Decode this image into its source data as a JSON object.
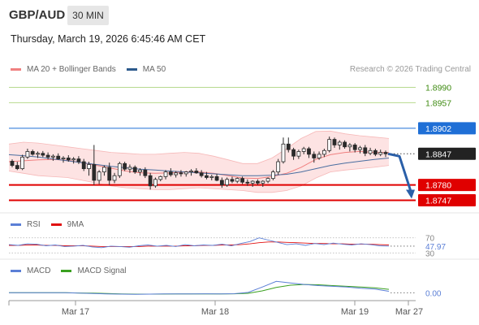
{
  "header": {
    "pair": "GBP/AUD",
    "timeframe": "30 MIN",
    "datetime": "Thursday, March 19, 2026 6:45:46 AM CET"
  },
  "legend": {
    "items": [
      {
        "label": "MA 20 + Bollinger Bands",
        "color": "#f08080"
      },
      {
        "label": "MA 50",
        "color": "#2c5a8c"
      }
    ],
    "copyright": "Research © 2026 Trading Central"
  },
  "rsi_legend": [
    {
      "label": "RSI",
      "color": "#5b7fd6"
    },
    {
      "label": "9MA",
      "color": "#e01010"
    }
  ],
  "macd_legend": [
    {
      "label": "MACD",
      "color": "#5b7fd6"
    },
    {
      "label": "MACD Signal",
      "color": "#3aa020"
    }
  ],
  "chart_data": {
    "type": "candlestick",
    "price_range": [
      1.872,
      1.901
    ],
    "levels": [
      {
        "label": "1.8990",
        "value": 1.899,
        "kind": "target",
        "color": "#b7d98e"
      },
      {
        "label": "1.8957",
        "value": 1.8957,
        "kind": "target",
        "color": "#b7d98e"
      },
      {
        "label": "1.8902",
        "value": 1.8902,
        "kind": "pivot",
        "color": "#1f6fd6"
      },
      {
        "label": "1.8847",
        "value": 1.8847,
        "kind": "last",
        "color": "#222222"
      },
      {
        "label": "1.8780",
        "value": 1.878,
        "kind": "support",
        "color": "#e00000"
      },
      {
        "label": "1.8747",
        "value": 1.8747,
        "kind": "support",
        "color": "#e00000"
      }
    ],
    "x_ticks": [
      "Mar 17",
      "Mar 18",
      "Mar 19",
      "Mar 27"
    ],
    "candles": [
      [
        1.8831,
        1.8835,
        1.8818,
        1.8822
      ],
      [
        1.8822,
        1.883,
        1.8812,
        1.8815
      ],
      [
        1.8815,
        1.8845,
        1.8812,
        1.884
      ],
      [
        1.884,
        1.8858,
        1.8836,
        1.8852
      ],
      [
        1.8852,
        1.8856,
        1.8843,
        1.8846
      ],
      [
        1.8846,
        1.8852,
        1.8838,
        1.8848
      ],
      [
        1.8848,
        1.8853,
        1.884,
        1.8844
      ],
      [
        1.8844,
        1.885,
        1.8835,
        1.884
      ],
      [
        1.884,
        1.8846,
        1.8832,
        1.8842
      ],
      [
        1.8842,
        1.8848,
        1.8834,
        1.8836
      ],
      [
        1.8836,
        1.8842,
        1.8828,
        1.8838
      ],
      [
        1.8838,
        1.8844,
        1.883,
        1.8834
      ],
      [
        1.8834,
        1.884,
        1.8826,
        1.8836
      ],
      [
        1.8836,
        1.8842,
        1.8825,
        1.883
      ],
      [
        1.883,
        1.8836,
        1.881,
        1.8815
      ],
      [
        1.8815,
        1.883,
        1.88,
        1.8824
      ],
      [
        1.8824,
        1.8866,
        1.878,
        1.879
      ],
      [
        1.879,
        1.8812,
        1.8782,
        1.8808
      ],
      [
        1.8808,
        1.8822,
        1.88,
        1.8818
      ],
      [
        1.8818,
        1.8828,
        1.878,
        1.879
      ],
      [
        1.879,
        1.8806,
        1.8784,
        1.88
      ],
      [
        1.88,
        1.883,
        1.8795,
        1.8826
      ],
      [
        1.8826,
        1.883,
        1.881,
        1.8814
      ],
      [
        1.8814,
        1.8824,
        1.8806,
        1.8818
      ],
      [
        1.8818,
        1.8822,
        1.8804,
        1.8808
      ],
      [
        1.8808,
        1.8816,
        1.88,
        1.8812
      ],
      [
        1.8812,
        1.8818,
        1.8795,
        1.88
      ],
      [
        1.88,
        1.8806,
        1.877,
        1.8778
      ],
      [
        1.8778,
        1.8796,
        1.8774,
        1.8792
      ],
      [
        1.8792,
        1.88,
        1.8788,
        1.8798
      ],
      [
        1.8798,
        1.8812,
        1.8792,
        1.8808
      ],
      [
        1.8808,
        1.8816,
        1.8798,
        1.8802
      ],
      [
        1.8802,
        1.881,
        1.8796,
        1.8806
      ],
      [
        1.8806,
        1.8812,
        1.8798,
        1.8804
      ],
      [
        1.8804,
        1.881,
        1.8798,
        1.8808
      ],
      [
        1.8808,
        1.8814,
        1.88,
        1.881
      ],
      [
        1.881,
        1.8816,
        1.8804,
        1.8806
      ],
      [
        1.8806,
        1.8812,
        1.8796,
        1.88
      ],
      [
        1.88,
        1.8808,
        1.8792,
        1.8796
      ],
      [
        1.8796,
        1.8802,
        1.879,
        1.8798
      ],
      [
        1.8798,
        1.8804,
        1.8788,
        1.879
      ],
      [
        1.879,
        1.8796,
        1.8774,
        1.878
      ],
      [
        1.878,
        1.8796,
        1.8776,
        1.8792
      ],
      [
        1.8792,
        1.8798,
        1.8784,
        1.8788
      ],
      [
        1.8788,
        1.8796,
        1.8784,
        1.8794
      ],
      [
        1.8794,
        1.8798,
        1.8782,
        1.8786
      ],
      [
        1.8786,
        1.8792,
        1.8778,
        1.8784
      ],
      [
        1.8784,
        1.879,
        1.8776,
        1.8788
      ],
      [
        1.8788,
        1.8792,
        1.878,
        1.8784
      ],
      [
        1.8784,
        1.879,
        1.8776,
        1.8788
      ],
      [
        1.8788,
        1.8796,
        1.8784,
        1.8794
      ],
      [
        1.8794,
        1.8812,
        1.879,
        1.8808
      ],
      [
        1.8808,
        1.8836,
        1.8802,
        1.883
      ],
      [
        1.883,
        1.8882,
        1.8826,
        1.8868
      ],
      [
        1.8868,
        1.8882,
        1.885,
        1.8856
      ],
      [
        1.8856,
        1.886,
        1.8834,
        1.8842
      ],
      [
        1.8842,
        1.8856,
        1.8836,
        1.8852
      ],
      [
        1.8852,
        1.8862,
        1.8846,
        1.8858
      ],
      [
        1.8858,
        1.8862,
        1.8838,
        1.8846
      ],
      [
        1.8846,
        1.8852,
        1.8828,
        1.8838
      ],
      [
        1.8838,
        1.8852,
        1.8834,
        1.8846
      ],
      [
        1.8846,
        1.8858,
        1.884,
        1.8854
      ],
      [
        1.8854,
        1.8884,
        1.885,
        1.8878
      ],
      [
        1.8878,
        1.8882,
        1.886,
        1.8866
      ],
      [
        1.8866,
        1.8876,
        1.8856,
        1.8872
      ],
      [
        1.8872,
        1.8876,
        1.8858,
        1.8862
      ],
      [
        1.8862,
        1.887,
        1.8852,
        1.8866
      ],
      [
        1.8866,
        1.887,
        1.885,
        1.8856
      ],
      [
        1.8856,
        1.8864,
        1.8848,
        1.886
      ],
      [
        1.886,
        1.8866,
        1.8842,
        1.8848
      ],
      [
        1.8848,
        1.886,
        1.8844,
        1.8854
      ],
      [
        1.8854,
        1.8858,
        1.8842,
        1.8846
      ],
      [
        1.8846,
        1.8856,
        1.8842,
        1.885
      ],
      [
        1.885,
        1.8854,
        1.884,
        1.8847
      ]
    ],
    "ma20": [
      1.883,
      1.8832,
      1.8834,
      1.8835,
      1.8833,
      1.8828,
      1.8822,
      1.8816,
      1.881,
      1.8806,
      1.8805,
      1.8806,
      1.8808,
      1.8808,
      1.8805,
      1.88,
      1.8795,
      1.8794,
      1.8798,
      1.8805,
      1.8818,
      1.8835,
      1.8845,
      1.885,
      1.8852,
      1.885,
      1.885
    ],
    "ma50": [
      1.8845,
      1.8843,
      1.884,
      1.8836,
      1.8832,
      1.8828,
      1.8824,
      1.882,
      1.8817,
      1.8814,
      1.8812,
      1.881,
      1.8808,
      1.8806,
      1.8804,
      1.8802,
      1.88,
      1.88,
      1.8801,
      1.8803,
      1.8808,
      1.8815,
      1.8822,
      1.8827,
      1.8831,
      1.8835,
      1.8838
    ],
    "bb_upper": [
      1.8868,
      1.8872,
      1.887,
      1.8866,
      1.8862,
      1.8858,
      1.8854,
      1.885,
      1.8848,
      1.8846,
      1.8846,
      1.8848,
      1.885,
      1.8848,
      1.8842,
      1.8834,
      1.8826,
      1.8826,
      1.8838,
      1.8858,
      1.888,
      1.8895,
      1.8896,
      1.889,
      1.8886,
      1.8883,
      1.888
    ],
    "bb_lower": [
      1.881,
      1.8805,
      1.88,
      1.8798,
      1.8796,
      1.879,
      1.8784,
      1.8778,
      1.8774,
      1.8772,
      1.877,
      1.877,
      1.8772,
      1.8774,
      1.8772,
      1.877,
      1.8768,
      1.8764,
      1.8764,
      1.8768,
      1.8778,
      1.8795,
      1.8808,
      1.8812,
      1.8815,
      1.8818,
      1.8822
    ],
    "rsi": {
      "levels": [
        70,
        30
      ],
      "last_value_label": "47.97",
      "level_labels": [
        "70",
        "30"
      ],
      "rsi": [
        52,
        50,
        54,
        53,
        49,
        51,
        47,
        48,
        50,
        46,
        44,
        48,
        47,
        45,
        49,
        51,
        48,
        50,
        47,
        52,
        49,
        51,
        50,
        53,
        49,
        55,
        60,
        70,
        64,
        58,
        52,
        54,
        50,
        55,
        52,
        56,
        53,
        51,
        54,
        52,
        49,
        48
      ],
      "ma9": [
        50,
        50,
        51,
        51,
        50,
        50,
        49,
        49,
        49,
        48,
        47,
        47,
        47,
        47,
        47,
        48,
        48,
        48,
        48,
        49,
        49,
        50,
        50,
        51,
        51,
        52,
        54,
        57,
        59,
        59,
        58,
        57,
        56,
        55,
        55,
        54,
        54,
        53,
        53,
        53,
        52,
        51
      ]
    },
    "macd": {
      "zero_label": "0.00",
      "macd": [
        0.0,
        0.0,
        0.0,
        0.0,
        0.0,
        -0.1,
        -0.2,
        -0.3,
        -0.35,
        -0.4,
        -0.35,
        -0.3,
        -0.32,
        -0.3,
        -0.28,
        -0.3,
        -0.25,
        0.1,
        1.5,
        3.0,
        2.6,
        2.2,
        1.9,
        1.7,
        1.5,
        1.2,
        1.0,
        0.4
      ],
      "signal": [
        0.0,
        0.0,
        0.0,
        0.0,
        0.0,
        -0.05,
        -0.1,
        -0.2,
        -0.3,
        -0.35,
        -0.35,
        -0.33,
        -0.32,
        -0.31,
        -0.3,
        -0.3,
        -0.28,
        -0.15,
        0.5,
        1.4,
        2.0,
        2.2,
        2.1,
        1.9,
        1.7,
        1.5,
        1.3,
        0.9
      ]
    }
  }
}
